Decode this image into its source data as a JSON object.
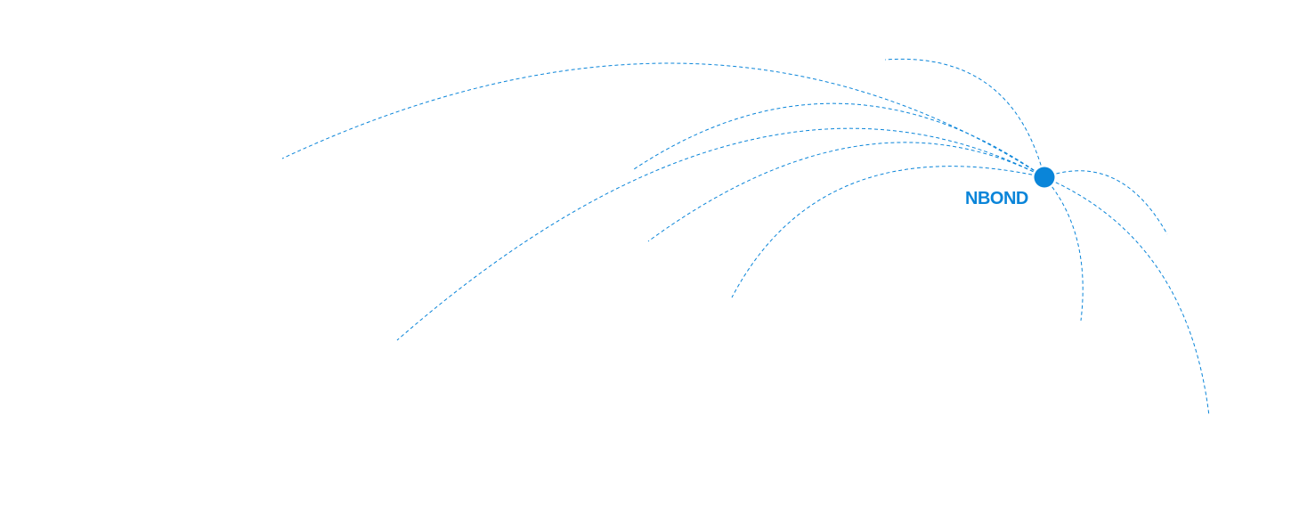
{
  "hub": {
    "label": "NBOND",
    "color": "#0a85d9"
  },
  "connections": {
    "count_style": "dashed",
    "color": "#0a85d9"
  }
}
